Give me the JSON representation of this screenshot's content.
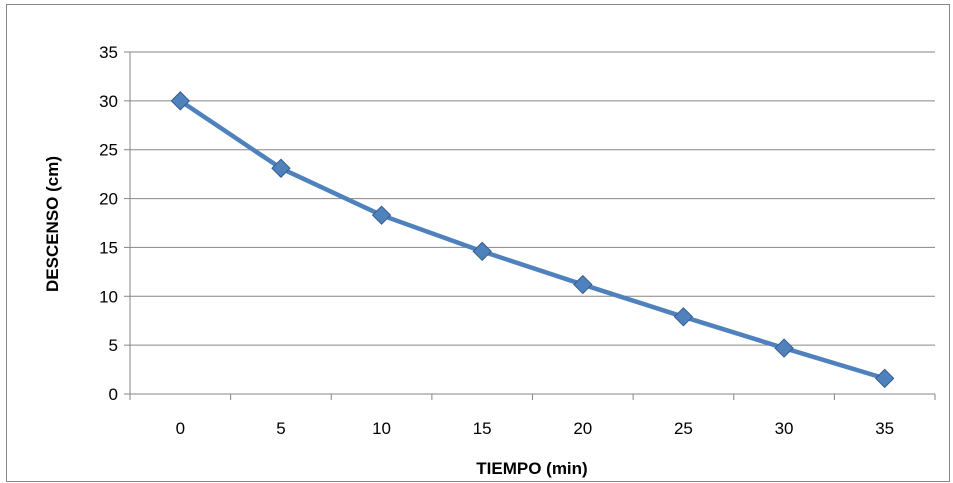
{
  "chart_data": {
    "type": "line",
    "title": "",
    "xlabel": "TIEMPO (min)",
    "ylabel": "DESCENSO (cm)",
    "categories": [
      "0",
      "5",
      "10",
      "15",
      "20",
      "25",
      "30",
      "35"
    ],
    "series": [
      {
        "values": [
          30.0,
          23.1,
          18.3,
          14.6,
          11.2,
          7.9,
          4.7,
          1.6
        ]
      }
    ],
    "ylim": [
      0,
      35
    ],
    "yticks": [
      "0",
      "5",
      "10",
      "15",
      "20",
      "25",
      "30",
      "35"
    ],
    "grid": "horizontal",
    "legend": "none",
    "marker": "diamond",
    "colors": {
      "series": "#4F81BD",
      "marker_edge": "#385D8A",
      "grid": "#868686",
      "frame": "#868686"
    }
  }
}
